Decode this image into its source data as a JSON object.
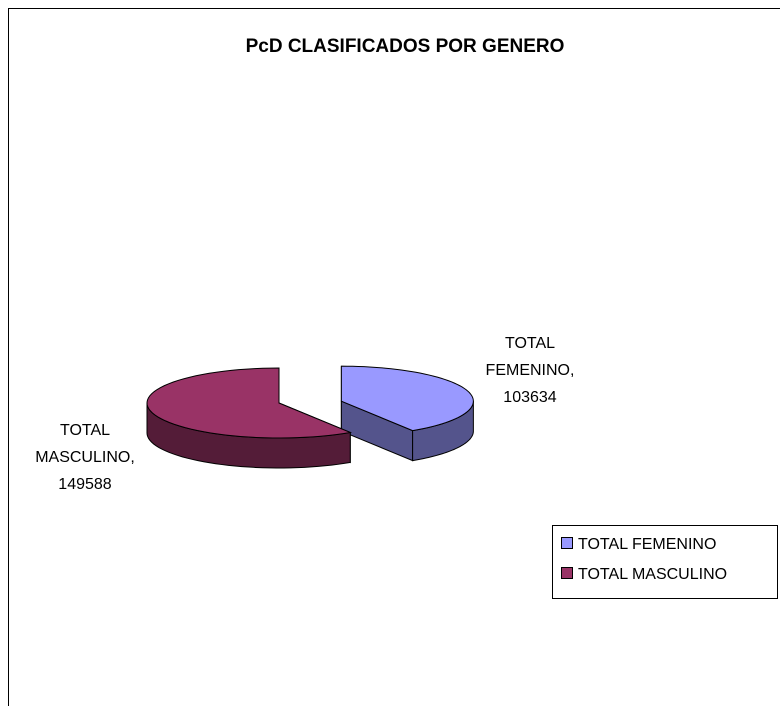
{
  "chart_data": {
    "type": "pie",
    "title": "PcD CLASIFICADOS POR GENERO",
    "categories": [
      "TOTAL FEMENINO",
      "TOTAL MASCULINO"
    ],
    "values": [
      103634,
      149588
    ],
    "value_labels": [
      "TOTAL FEMENINO, 103634",
      "TOTAL MASCULINO, 149588"
    ],
    "colors": [
      "#9999ff",
      "#993366"
    ],
    "legend": "right"
  }
}
